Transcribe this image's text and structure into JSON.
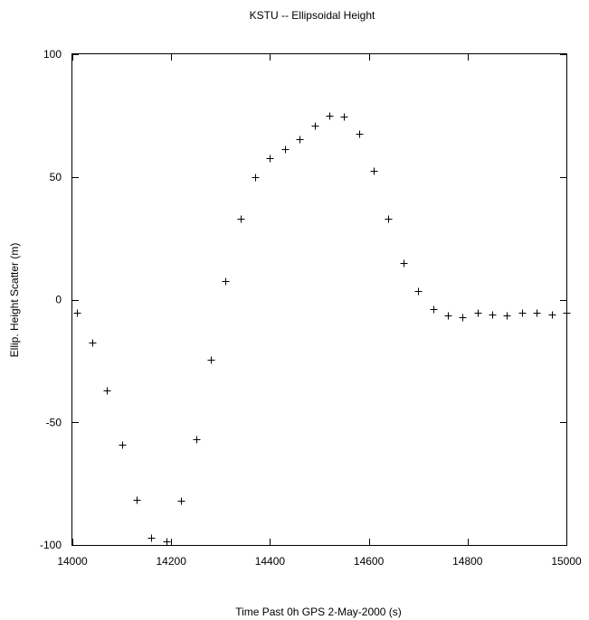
{
  "chart_data": {
    "type": "scatter",
    "title": "KSTU -- Ellipsoidal Height",
    "xlabel": "Time Past 0h GPS 2-May-2000  (s)",
    "ylabel": "Ellip. Height Scatter  (m)",
    "xlim": [
      14000,
      15000
    ],
    "ylim": [
      -100,
      100
    ],
    "xticks": [
      14000,
      14200,
      14400,
      14600,
      14800,
      15000
    ],
    "yticks": [
      -100,
      -50,
      0,
      50,
      100
    ],
    "xtick_labels": [
      "14000",
      "14200",
      "14400",
      "14600",
      "14800",
      "15000"
    ],
    "ytick_labels": [
      "-100",
      "-50",
      "0",
      "50",
      "100"
    ],
    "marker": "+",
    "grid": false,
    "legend": "none",
    "series": [
      {
        "points": [
          {
            "x": 14010,
            "y": -5.5
          },
          {
            "x": 14040,
            "y": -17.5
          },
          {
            "x": 14070,
            "y": -37
          },
          {
            "x": 14100,
            "y": -59
          },
          {
            "x": 14130,
            "y": -81.5
          },
          {
            "x": 14160,
            "y": -97
          },
          {
            "x": 14190,
            "y": -98.5
          },
          {
            "x": 14220,
            "y": -82
          },
          {
            "x": 14250,
            "y": -57
          },
          {
            "x": 14280,
            "y": -24.5
          },
          {
            "x": 14310,
            "y": 7.5
          },
          {
            "x": 14340,
            "y": 33
          },
          {
            "x": 14370,
            "y": 50
          },
          {
            "x": 14400,
            "y": 57.5
          },
          {
            "x": 14430,
            "y": 61.5
          },
          {
            "x": 14460,
            "y": 65.5
          },
          {
            "x": 14490,
            "y": 71
          },
          {
            "x": 14520,
            "y": 75
          },
          {
            "x": 14550,
            "y": 74.5
          },
          {
            "x": 14580,
            "y": 67.5
          },
          {
            "x": 14610,
            "y": 52.5
          },
          {
            "x": 14640,
            "y": 33
          },
          {
            "x": 14670,
            "y": 15
          },
          {
            "x": 14700,
            "y": 3.5
          },
          {
            "x": 14730,
            "y": -4
          },
          {
            "x": 14760,
            "y": -6.5
          },
          {
            "x": 14790,
            "y": -7
          },
          {
            "x": 14820,
            "y": -5.5
          },
          {
            "x": 14850,
            "y": -6
          },
          {
            "x": 14880,
            "y": -6.5
          },
          {
            "x": 14910,
            "y": -5.5
          },
          {
            "x": 14940,
            "y": -5.5
          },
          {
            "x": 14970,
            "y": -6
          },
          {
            "x": 15000,
            "y": -5.5
          }
        ]
      }
    ]
  }
}
